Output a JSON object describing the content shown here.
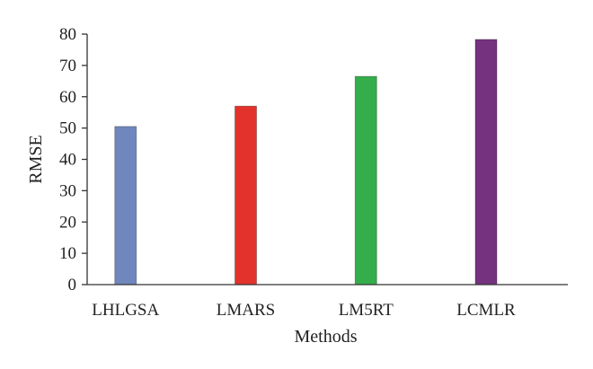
{
  "chart_data": {
    "type": "bar",
    "title": "",
    "xlabel": "Methods",
    "ylabel": "RMSE",
    "categories": [
      "LHLGSA",
      "LMARS",
      "LM5RT",
      "LCMLR"
    ],
    "values": [
      50.5,
      57,
      66.5,
      78.3
    ],
    "colors": [
      "#6f87bd",
      "#e3322c",
      "#34ad4b",
      "#75337f"
    ],
    "ylim": [
      0,
      80
    ],
    "yticks": [
      0,
      10,
      20,
      30,
      40,
      50,
      60,
      70,
      80
    ],
    "grid": false,
    "legend": "none"
  }
}
